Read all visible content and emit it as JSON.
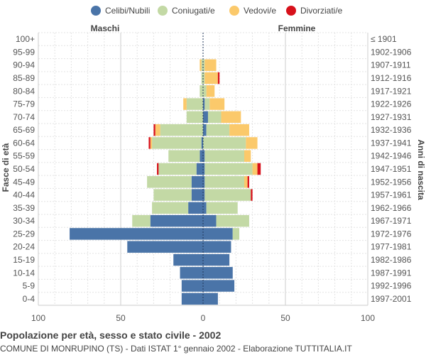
{
  "chart_data": {
    "type": "bar",
    "orientation": "horizontal-population-pyramid",
    "title": "Popolazione per età, sesso e stato civile - 2002",
    "subtitle": "COMUNE DI MONRUPINO (TS) - Dati ISTAT 1° gennaio 2002 - Elaborazione TUTTITALIA.IT",
    "left_header": "Maschi",
    "right_header": "Femmine",
    "ylabel_left": "Fasce di età",
    "ylabel_right": "Anni di nascita",
    "xlim": [
      -100,
      100
    ],
    "x_ticks": [
      -100,
      -50,
      0,
      50,
      100
    ],
    "x_tick_labels": [
      "100",
      "50",
      "0",
      "50",
      "100"
    ],
    "grid": true,
    "legend_position": "top",
    "series_names": [
      "Celibi/Nubili",
      "Coniugati/e",
      "Vedovi/e",
      "Divorziati/e"
    ],
    "colors": [
      "#4a74a8",
      "#c3d9a5",
      "#fbc96b",
      "#d7111b"
    ],
    "age_groups": [
      "100+",
      "95-99",
      "90-94",
      "85-89",
      "80-84",
      "75-79",
      "70-74",
      "65-69",
      "60-64",
      "55-59",
      "50-54",
      "45-49",
      "40-44",
      "35-39",
      "30-34",
      "25-29",
      "20-24",
      "15-19",
      "10-14",
      "5-9",
      "0-4"
    ],
    "birth_years": [
      "≤ 1901",
      "1902-1906",
      "1907-1911",
      "1912-1916",
      "1917-1921",
      "1922-1926",
      "1927-1931",
      "1932-1936",
      "1937-1941",
      "1942-1946",
      "1947-1951",
      "1952-1956",
      "1957-1961",
      "1962-1966",
      "1967-1971",
      "1972-1976",
      "1977-1981",
      "1982-1986",
      "1987-1991",
      "1992-1996",
      "1997-2001"
    ],
    "males": {
      "Celibi/Nubili": [
        0,
        0,
        0,
        0,
        0,
        0,
        0,
        0,
        1,
        2,
        4,
        7,
        7,
        9,
        32,
        81,
        46,
        18,
        14,
        13,
        13
      ],
      "Coniugati/e": [
        0,
        0,
        1,
        1,
        2,
        10,
        10,
        26,
        30,
        19,
        23,
        27,
        23,
        22,
        11,
        0,
        0,
        0,
        0,
        0,
        0
      ],
      "Vedovi/e": [
        0,
        0,
        1,
        0,
        0,
        2,
        0,
        3,
        1,
        0,
        0,
        0,
        0,
        0,
        0,
        0,
        0,
        0,
        0,
        0,
        0
      ],
      "Divorziati/e": [
        0,
        0,
        0,
        0,
        0,
        0,
        0,
        1,
        1,
        0,
        1,
        0,
        0,
        0,
        0,
        0,
        0,
        0,
        0,
        0,
        0
      ]
    },
    "females": {
      "Celibi/Nubili": [
        0,
        0,
        0,
        0,
        0,
        1,
        3,
        2,
        0,
        1,
        1,
        1,
        1,
        2,
        8,
        18,
        17,
        16,
        18,
        19,
        9
      ],
      "Coniugati/e": [
        0,
        0,
        1,
        1,
        2,
        3,
        8,
        14,
        26,
        24,
        29,
        24,
        28,
        19,
        20,
        4,
        0,
        0,
        0,
        0,
        0
      ],
      "Vedovi/e": [
        0,
        0,
        7,
        8,
        5,
        9,
        12,
        12,
        7,
        4,
        3,
        2,
        0,
        0,
        0,
        0,
        0,
        0,
        0,
        0,
        0
      ],
      "Divorziati/e": [
        0,
        0,
        0,
        1,
        0,
        0,
        0,
        0,
        0,
        0,
        2,
        1,
        1,
        0,
        0,
        0,
        0,
        0,
        0,
        0,
        0
      ]
    }
  }
}
